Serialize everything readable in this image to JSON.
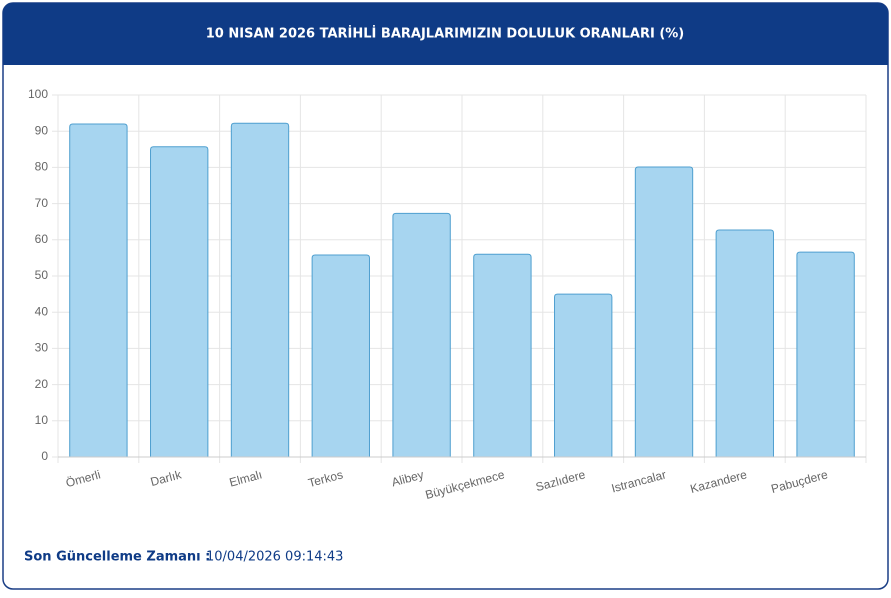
{
  "chart_data": {
    "type": "bar",
    "title": "10 NISAN 2026 TARİHLİ BARAJLARIMIZIN DOLULUK ORANLARI (%)",
    "categories": [
      "Ömerli",
      "Darlık",
      "Elmalı",
      "Terkos",
      "Alibey",
      "Büyükçekmece",
      "Sazlıdere",
      "Istrancalar",
      "Kazandere",
      "Pabuçdere"
    ],
    "values": [
      92,
      85.7,
      92.2,
      55.8,
      67.3,
      56,
      45,
      80.1,
      62.7,
      56.6
    ],
    "color": "#a7d5f0",
    "border_color": "#4f9fcf",
    "ylim": [
      0,
      100
    ],
    "yticks": [
      0,
      10,
      20,
      30,
      40,
      50,
      60,
      70,
      80,
      90,
      100
    ],
    "grid": true
  },
  "footer": {
    "label": "Son Güncelleme Zamanı :",
    "timestamp": "10/04/2026 09:14:43"
  }
}
